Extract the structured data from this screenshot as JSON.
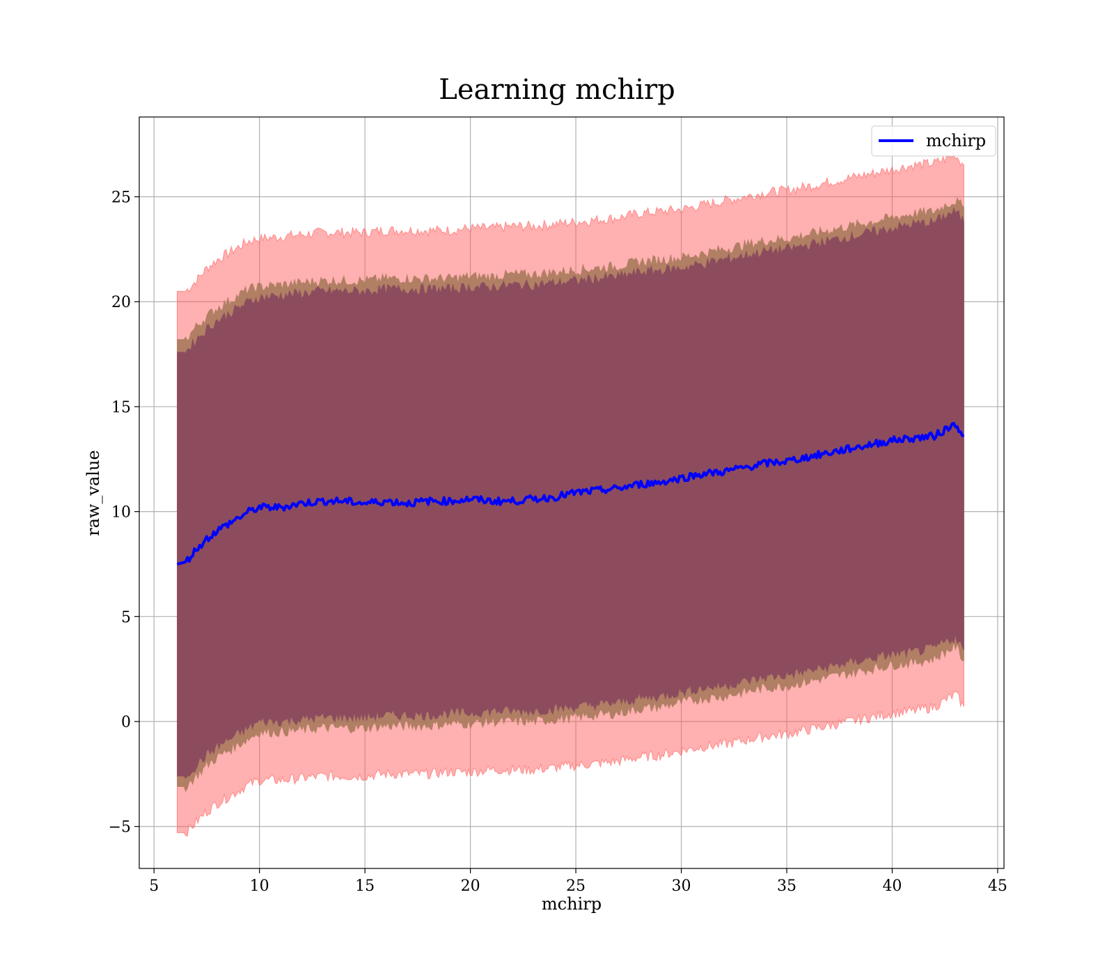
{
  "chart_data": {
    "type": "line",
    "title": "Learning mchirp",
    "xlabel": "mchirp",
    "ylabel": "raw_value",
    "xlim": [
      4.3,
      45.3
    ],
    "ylim": [
      -7,
      28.8
    ],
    "xticks": [
      5,
      10,
      15,
      20,
      25,
      30,
      35,
      40,
      45
    ],
    "yticks": [
      -5,
      0,
      5,
      10,
      15,
      20,
      25
    ],
    "ytick_labels": [
      "−5",
      "0",
      "5",
      "10",
      "15",
      "20",
      "25"
    ],
    "grid": true,
    "legend": {
      "position": "top-right",
      "entries": [
        "mchirp"
      ]
    },
    "colors": {
      "line": "#0000ff",
      "outer_band": "#ff5a5a",
      "middle_band": "#a87a5c",
      "inner_band": "#8a4a5e"
    },
    "x": [
      6.1,
      6.5,
      7,
      7.5,
      8,
      8.5,
      9,
      9.5,
      10,
      11,
      12,
      13,
      14,
      15,
      16,
      17,
      18,
      19,
      20,
      21,
      22,
      23,
      24,
      25,
      26,
      27,
      28,
      29,
      30,
      31,
      32,
      33,
      34,
      35,
      36,
      37,
      38,
      39,
      40,
      41,
      42,
      42.5,
      43,
      43.4
    ],
    "series": [
      {
        "name": "mchirp",
        "values": [
          7.5,
          7.6,
          8.2,
          8.7,
          9.1,
          9.4,
          9.7,
          10.0,
          10.2,
          10.2,
          10.4,
          10.5,
          10.5,
          10.4,
          10.5,
          10.4,
          10.5,
          10.5,
          10.6,
          10.5,
          10.5,
          10.6,
          10.7,
          10.9,
          11.0,
          11.1,
          11.3,
          11.4,
          11.6,
          11.8,
          11.9,
          12.1,
          12.3,
          12.4,
          12.6,
          12.8,
          13.0,
          13.2,
          13.4,
          13.5,
          13.6,
          13.9,
          14.2,
          13.6
        ]
      }
    ],
    "bands": [
      {
        "upper": [
          20.5,
          20.5,
          21.0,
          21.6,
          22.0,
          22.3,
          22.6,
          22.9,
          23.0,
          23.1,
          23.2,
          23.3,
          23.3,
          23.3,
          23.4,
          23.4,
          23.4,
          23.4,
          23.5,
          23.5,
          23.6,
          23.6,
          23.7,
          23.8,
          23.9,
          24.0,
          24.2,
          24.3,
          24.4,
          24.6,
          24.8,
          25.0,
          25.2,
          25.3,
          25.5,
          25.7,
          25.9,
          26.1,
          26.3,
          26.5,
          26.6,
          26.8,
          27.0,
          26.5
        ],
        "lower": [
          -5.3,
          -5.3,
          -4.8,
          -4.3,
          -3.9,
          -3.6,
          -3.3,
          -3.0,
          -2.8,
          -2.8,
          -2.7,
          -2.6,
          -2.6,
          -2.6,
          -2.5,
          -2.5,
          -2.5,
          -2.4,
          -2.4,
          -2.3,
          -2.3,
          -2.3,
          -2.2,
          -2.1,
          -2.0,
          -1.9,
          -1.7,
          -1.6,
          -1.4,
          -1.2,
          -1.1,
          -0.9,
          -0.7,
          -0.6,
          -0.4,
          -0.2,
          0.0,
          0.2,
          0.4,
          0.5,
          0.7,
          1.0,
          1.3,
          0.7
        ]
      },
      {
        "upper": [
          18.2,
          18.2,
          18.8,
          19.3,
          19.7,
          20.0,
          20.3,
          20.6,
          20.7,
          20.8,
          20.9,
          21.0,
          21.0,
          21.0,
          21.1,
          21.1,
          21.1,
          21.1,
          21.2,
          21.2,
          21.3,
          21.3,
          21.4,
          21.5,
          21.6,
          21.7,
          21.9,
          22.0,
          22.1,
          22.3,
          22.5,
          22.7,
          22.9,
          23.0,
          23.2,
          23.4,
          23.6,
          23.8,
          24.0,
          24.2,
          24.3,
          24.6,
          24.8,
          24.5
        ],
        "lower": [
          -3.1,
          -3.1,
          -2.6,
          -2.1,
          -1.7,
          -1.4,
          -1.1,
          -0.8,
          -0.5,
          -0.5,
          -0.4,
          -0.3,
          -0.3,
          -0.3,
          -0.2,
          -0.2,
          -0.2,
          -0.1,
          -0.1,
          0.0,
          0.0,
          0.0,
          0.1,
          0.2,
          0.3,
          0.4,
          0.6,
          0.7,
          0.9,
          1.1,
          1.2,
          1.4,
          1.6,
          1.7,
          1.9,
          2.1,
          2.3,
          2.5,
          2.7,
          2.8,
          3.0,
          3.3,
          3.6,
          2.9
        ]
      },
      {
        "upper": [
          17.6,
          17.6,
          18.2,
          18.7,
          19.1,
          19.4,
          19.7,
          20.0,
          20.2,
          20.3,
          20.4,
          20.5,
          20.5,
          20.5,
          20.6,
          20.6,
          20.6,
          20.6,
          20.7,
          20.7,
          20.8,
          20.8,
          20.9,
          21.0,
          21.1,
          21.2,
          21.4,
          21.5,
          21.6,
          21.8,
          22.0,
          22.2,
          22.4,
          22.5,
          22.7,
          22.9,
          23.1,
          23.3,
          23.5,
          23.7,
          23.8,
          24.1,
          24.3,
          23.8
        ],
        "lower": [
          -2.6,
          -2.6,
          -2.1,
          -1.6,
          -1.2,
          -0.9,
          -0.6,
          -0.3,
          0.0,
          0.0,
          0.1,
          0.2,
          0.2,
          0.2,
          0.3,
          0.3,
          0.3,
          0.4,
          0.4,
          0.5,
          0.5,
          0.5,
          0.6,
          0.7,
          0.8,
          0.9,
          1.1,
          1.2,
          1.4,
          1.6,
          1.7,
          1.9,
          2.1,
          2.2,
          2.4,
          2.6,
          2.8,
          3.0,
          3.2,
          3.3,
          3.5,
          3.8,
          4.0,
          3.4
        ]
      }
    ]
  }
}
